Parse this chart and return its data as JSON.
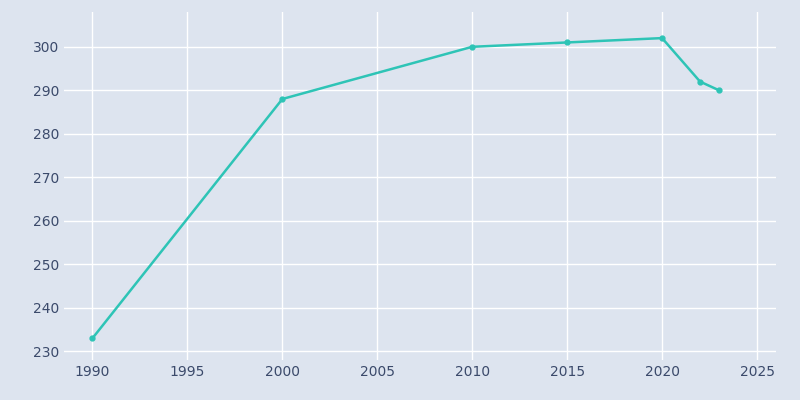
{
  "years": [
    1990,
    2000,
    2010,
    2015,
    2020,
    2022,
    2023
  ],
  "population": [
    233,
    288,
    300,
    301,
    302,
    292,
    290
  ],
  "line_color": "#2ec4b6",
  "marker_color": "#2ec4b6",
  "bg_color": "#dde4ef",
  "plot_bg_color": "#dde4ef",
  "grid_color": "#FFFFFF",
  "tick_color": "#3b4a6b",
  "xlim": [
    1988.5,
    2026
  ],
  "ylim": [
    228,
    308
  ],
  "yticks": [
    230,
    240,
    250,
    260,
    270,
    280,
    290,
    300
  ],
  "xticks": [
    1990,
    1995,
    2000,
    2005,
    2010,
    2015,
    2020,
    2025
  ]
}
